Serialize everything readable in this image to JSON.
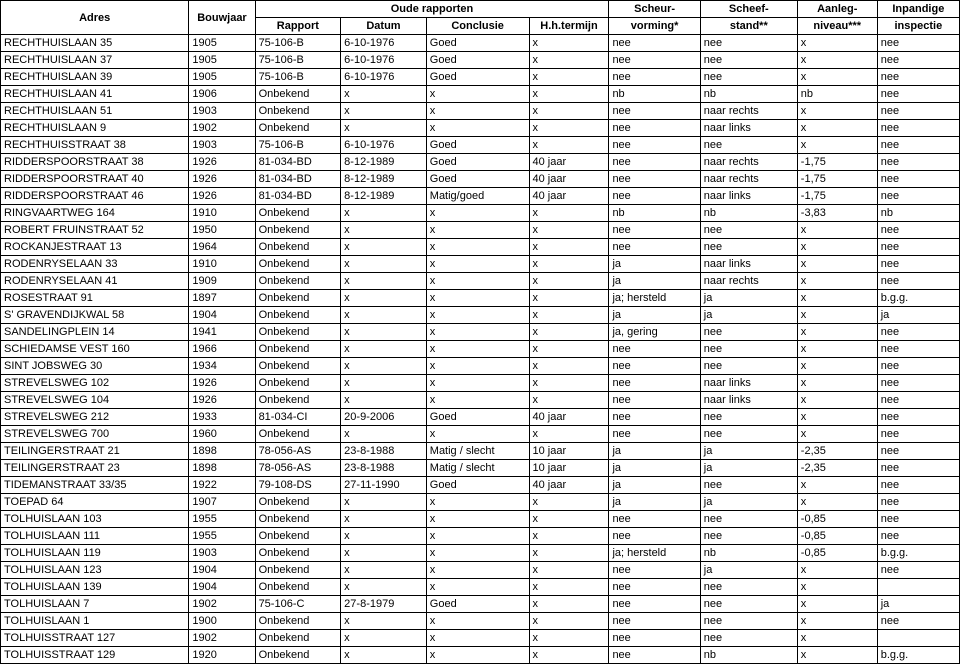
{
  "headers": {
    "row1": {
      "adres": "Adres",
      "bouwjaar": "Bouwjaar",
      "oude": "Oude rapporten",
      "scheur": "Scheur-",
      "scheef": "Scheef-",
      "aanleg": "Aanleg-",
      "inpandig": "Inpandige"
    },
    "row2": {
      "rapport": "Rapport",
      "datum": "Datum",
      "conclusie": "Conclusie",
      "hh": "H.h.termijn",
      "scheur": "vorming*",
      "scheef": "stand**",
      "aanleg": "niveau***",
      "inpandig": "inspectie"
    }
  },
  "rows": [
    {
      "adres": "RECHTHUISLAAN  35",
      "bouwjaar": "1905",
      "rapport": "75-106-B",
      "datum": "6-10-1976",
      "conclusie": "Goed",
      "hh": "x",
      "scheur": "nee",
      "scheef": "nee",
      "aanleg": "x",
      "inpandig": "nee"
    },
    {
      "adres": "RECHTHUISLAAN  37",
      "bouwjaar": "1905",
      "rapport": "75-106-B",
      "datum": "6-10-1976",
      "conclusie": "Goed",
      "hh": "x",
      "scheur": "nee",
      "scheef": "nee",
      "aanleg": "x",
      "inpandig": "nee"
    },
    {
      "adres": "RECHTHUISLAAN  39",
      "bouwjaar": "1905",
      "rapport": "75-106-B",
      "datum": "6-10-1976",
      "conclusie": "Goed",
      "hh": "x",
      "scheur": "nee",
      "scheef": "nee",
      "aanleg": "x",
      "inpandig": "nee"
    },
    {
      "adres": "RECHTHUISLAAN  41",
      "bouwjaar": "1906",
      "rapport": "Onbekend",
      "datum": "x",
      "conclusie": "x",
      "hh": "x",
      "scheur": "nb",
      "scheef": "nb",
      "aanleg": "nb",
      "inpandig": "nee"
    },
    {
      "adres": "RECHTHUISLAAN  51",
      "bouwjaar": "1903",
      "rapport": "Onbekend",
      "datum": "x",
      "conclusie": "x",
      "hh": "x",
      "scheur": "nee",
      "scheef": "naar rechts",
      "aanleg": "x",
      "inpandig": "nee"
    },
    {
      "adres": "RECHTHUISLAAN  9",
      "bouwjaar": "1902",
      "rapport": "Onbekend",
      "datum": "x",
      "conclusie": "x",
      "hh": "x",
      "scheur": "nee",
      "scheef": "naar links",
      "aanleg": "x",
      "inpandig": "nee"
    },
    {
      "adres": "RECHTHUISSTRAAT  38",
      "bouwjaar": "1903",
      "rapport": "75-106-B",
      "datum": "6-10-1976",
      "conclusie": "Goed",
      "hh": "x",
      "scheur": "nee",
      "scheef": "nee",
      "aanleg": "x",
      "inpandig": "nee"
    },
    {
      "adres": "RIDDERSPOORSTRAAT  38",
      "bouwjaar": "1926",
      "rapport": "81-034-BD",
      "datum": "8-12-1989",
      "conclusie": "Goed",
      "hh": "40 jaar",
      "scheur": "nee",
      "scheef": "naar rechts",
      "aanleg": "-1,75",
      "inpandig": "nee"
    },
    {
      "adres": "RIDDERSPOORSTRAAT  40",
      "bouwjaar": "1926",
      "rapport": "81-034-BD",
      "datum": "8-12-1989",
      "conclusie": "Goed",
      "hh": "40 jaar",
      "scheur": "nee",
      "scheef": "naar rechts",
      "aanleg": "-1,75",
      "inpandig": "nee"
    },
    {
      "adres": "RIDDERSPOORSTRAAT  46",
      "bouwjaar": "1926",
      "rapport": "81-034-BD",
      "datum": "8-12-1989",
      "conclusie": "Matig/goed",
      "hh": "40 jaar",
      "scheur": "nee",
      "scheef": "naar links",
      "aanleg": "-1,75",
      "inpandig": "nee"
    },
    {
      "adres": "RINGVAARTWEG  164",
      "bouwjaar": "1910",
      "rapport": "Onbekend",
      "datum": "x",
      "conclusie": "x",
      "hh": "x",
      "scheur": "nb",
      "scheef": "nb",
      "aanleg": "-3,83",
      "inpandig": "nb"
    },
    {
      "adres": "ROBERT FRUINSTRAAT  52",
      "bouwjaar": "1950",
      "rapport": "Onbekend",
      "datum": "x",
      "conclusie": "x",
      "hh": "x",
      "scheur": "nee",
      "scheef": "nee",
      "aanleg": "x",
      "inpandig": "nee"
    },
    {
      "adres": "ROCKANJESTRAAT 13",
      "bouwjaar": "1964",
      "rapport": "Onbekend",
      "datum": "x",
      "conclusie": "x",
      "hh": "x",
      "scheur": "nee",
      "scheef": "nee",
      "aanleg": "x",
      "inpandig": "nee"
    },
    {
      "adres": "RODENRYSELAAN  33",
      "bouwjaar": "1910",
      "rapport": "Onbekend",
      "datum": "x",
      "conclusie": "x",
      "hh": "x",
      "scheur": "ja",
      "scheef": "naar links",
      "aanleg": "x",
      "inpandig": "nee"
    },
    {
      "adres": "RODENRYSELAAN  41",
      "bouwjaar": "1909",
      "rapport": "Onbekend",
      "datum": "x",
      "conclusie": "x",
      "hh": "x",
      "scheur": "ja",
      "scheef": "naar rechts",
      "aanleg": "x",
      "inpandig": "nee"
    },
    {
      "adres": "ROSESTRAAT  91",
      "bouwjaar": "1897",
      "rapport": "Onbekend",
      "datum": "x",
      "conclusie": "x",
      "hh": "x",
      "scheur": "ja; hersteld",
      "scheef": "ja",
      "aanleg": "x",
      "inpandig": "b.g.g."
    },
    {
      "adres": "S' GRAVENDIJKWAL 58",
      "bouwjaar": "1904",
      "rapport": "Onbekend",
      "datum": "x",
      "conclusie": "x",
      "hh": "x",
      "scheur": "ja",
      "scheef": "ja",
      "aanleg": "x",
      "inpandig": "ja"
    },
    {
      "adres": "SANDELINGPLEIN  14",
      "bouwjaar": "1941",
      "rapport": "Onbekend",
      "datum": "x",
      "conclusie": "x",
      "hh": "x",
      "scheur": "ja, gering",
      "scheef": "nee",
      "aanleg": "x",
      "inpandig": "nee"
    },
    {
      "adres": "SCHIEDAMSE VEST 160",
      "bouwjaar": "1966",
      "rapport": "Onbekend",
      "datum": "x",
      "conclusie": "x",
      "hh": "x",
      "scheur": "nee",
      "scheef": "nee",
      "aanleg": "x",
      "inpandig": "nee"
    },
    {
      "adres": "SINT JOBSWEG 30",
      "bouwjaar": "1934",
      "rapport": "Onbekend",
      "datum": "x",
      "conclusie": "x",
      "hh": "x",
      "scheur": "nee",
      "scheef": "nee",
      "aanleg": "x",
      "inpandig": "nee"
    },
    {
      "adres": "STREVELSWEG  102",
      "bouwjaar": "1926",
      "rapport": "Onbekend",
      "datum": "x",
      "conclusie": "x",
      "hh": "x",
      "scheur": "nee",
      "scheef": "naar links",
      "aanleg": "x",
      "inpandig": "nee"
    },
    {
      "adres": "STREVELSWEG  104",
      "bouwjaar": "1926",
      "rapport": "Onbekend",
      "datum": "x",
      "conclusie": "x",
      "hh": "x",
      "scheur": "nee",
      "scheef": "naar links",
      "aanleg": "x",
      "inpandig": "nee"
    },
    {
      "adres": "STREVELSWEG  212",
      "bouwjaar": "1933",
      "rapport": "81-034-CI",
      "datum": "20-9-2006",
      "conclusie": "Goed",
      "hh": "40 jaar",
      "scheur": "nee",
      "scheef": "nee",
      "aanleg": "x",
      "inpandig": "nee"
    },
    {
      "adres": "STREVELSWEG  700",
      "bouwjaar": "1960",
      "rapport": "Onbekend",
      "datum": "x",
      "conclusie": "x",
      "hh": "x",
      "scheur": "nee",
      "scheef": "nee",
      "aanleg": "x",
      "inpandig": "nee"
    },
    {
      "adres": "TEILINGERSTRAAT  21",
      "bouwjaar": "1898",
      "rapport": "78-056-AS",
      "datum": "23-8-1988",
      "conclusie": "Matig / slecht",
      "hh": "10 jaar",
      "scheur": "ja",
      "scheef": "ja",
      "aanleg": "-2,35",
      "inpandig": "nee"
    },
    {
      "adres": "TEILINGERSTRAAT  23",
      "bouwjaar": "1898",
      "rapport": "78-056-AS",
      "datum": "23-8-1988",
      "conclusie": "Matig / slecht",
      "hh": "10 jaar",
      "scheur": "ja",
      "scheef": "ja",
      "aanleg": "-2,35",
      "inpandig": "nee"
    },
    {
      "adres": "TIDEMANSTRAAT  33/35",
      "bouwjaar": "1922",
      "rapport": "79-108-DS",
      "datum": "27-11-1990",
      "conclusie": "Goed",
      "hh": "40 jaar",
      "scheur": "ja",
      "scheef": "nee",
      "aanleg": "x",
      "inpandig": "nee"
    },
    {
      "adres": "TOEPAD  64",
      "bouwjaar": "1907",
      "rapport": "Onbekend",
      "datum": "x",
      "conclusie": "x",
      "hh": "x",
      "scheur": "ja",
      "scheef": "ja",
      "aanleg": "x",
      "inpandig": "nee"
    },
    {
      "adres": "TOLHUISLAAN  103",
      "bouwjaar": "1955",
      "rapport": "Onbekend",
      "datum": "x",
      "conclusie": "x",
      "hh": "x",
      "scheur": "nee",
      "scheef": "nee",
      "aanleg": "-0,85",
      "inpandig": "nee"
    },
    {
      "adres": "TOLHUISLAAN  111",
      "bouwjaar": "1955",
      "rapport": "Onbekend",
      "datum": "x",
      "conclusie": "x",
      "hh": "x",
      "scheur": "nee",
      "scheef": "nee",
      "aanleg": "-0,85",
      "inpandig": "nee"
    },
    {
      "adres": "TOLHUISLAAN  119",
      "bouwjaar": "1903",
      "rapport": "Onbekend",
      "datum": "x",
      "conclusie": "x",
      "hh": "x",
      "scheur": "ja; hersteld",
      "scheef": "nb",
      "aanleg": "-0,85",
      "inpandig": "b.g.g."
    },
    {
      "adres": "TOLHUISLAAN  123",
      "bouwjaar": "1904",
      "rapport": "Onbekend",
      "datum": "x",
      "conclusie": "x",
      "hh": "x",
      "scheur": "nee",
      "scheef": "ja",
      "aanleg": "x",
      "inpandig": "nee"
    },
    {
      "adres": "TOLHUISLAAN  139",
      "bouwjaar": "1904",
      "rapport": "Onbekend",
      "datum": "x",
      "conclusie": "x",
      "hh": "x",
      "scheur": "nee",
      "scheef": "nee",
      "aanleg": "x",
      "inpandig": ""
    },
    {
      "adres": "TOLHUISLAAN  7",
      "bouwjaar": "1902",
      "rapport": "75-106-C",
      "datum": "27-8-1979",
      "conclusie": "Goed",
      "hh": "x",
      "scheur": "nee",
      "scheef": "nee",
      "aanleg": "x",
      "inpandig": "ja"
    },
    {
      "adres": "TOLHUISLAAN 1",
      "bouwjaar": "1900",
      "rapport": "Onbekend",
      "datum": "x",
      "conclusie": "x",
      "hh": "x",
      "scheur": "nee",
      "scheef": "nee",
      "aanleg": "x",
      "inpandig": "nee"
    },
    {
      "adres": "TOLHUISSTRAAT  127",
      "bouwjaar": "1902",
      "rapport": "Onbekend",
      "datum": "x",
      "conclusie": "x",
      "hh": "x",
      "scheur": "nee",
      "scheef": "nee",
      "aanleg": "x",
      "inpandig": ""
    },
    {
      "adres": "TOLHUISSTRAAT  129",
      "bouwjaar": "1920",
      "rapport": "Onbekend",
      "datum": "x",
      "conclusie": "x",
      "hh": "x",
      "scheur": "nee",
      "scheef": "nb",
      "aanleg": "x",
      "inpandig": "b.g.g."
    }
  ]
}
